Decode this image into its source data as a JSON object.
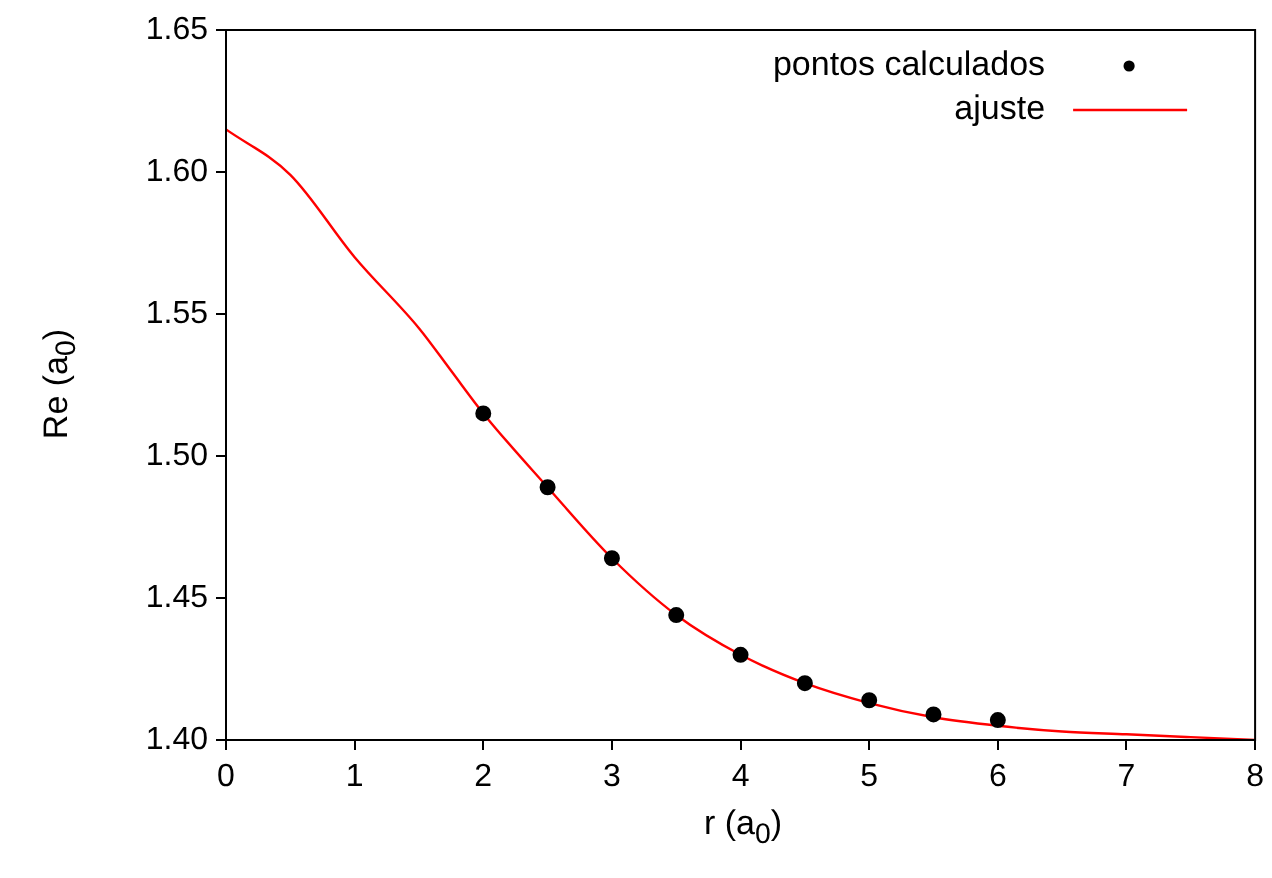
{
  "chart_data": {
    "type": "scatter",
    "xlabel": "r (a$_{0}$)",
    "ylabel": "Re (a$_{0}$)",
    "xlim": [
      0,
      8
    ],
    "xticks": [
      0,
      1,
      2,
      3,
      4,
      5,
      6,
      7,
      8
    ],
    "ylim": [
      1.4,
      1.65
    ],
    "yticks": [
      {
        "value": 1.4,
        "label": "1.40"
      },
      {
        "value": 1.45,
        "label": "1.45"
      },
      {
        "value": 1.5,
        "label": "1.50"
      },
      {
        "value": 1.55,
        "label": "1.55"
      },
      {
        "value": 1.6,
        "label": "1.60"
      },
      {
        "value": 1.65,
        "label": "1.65"
      }
    ],
    "grid": false,
    "legend": "top right",
    "series": [
      {
        "name": "pontos calculados",
        "type": "scatter",
        "marker": "circle",
        "color": "#000000",
        "x": [
          2,
          2.5,
          3,
          3.5,
          4,
          4.5,
          5,
          5.5,
          6
        ],
        "values": [
          1.515,
          1.489,
          1.464,
          1.444,
          1.43,
          1.42,
          1.414,
          1.409,
          1.407
        ]
      },
      {
        "name": "ajuste",
        "type": "line",
        "marker": "none",
        "line_style": "solid",
        "color": "#ff0000",
        "x": [
          0,
          0.5,
          1,
          1.5,
          1.75,
          2,
          2.5,
          3,
          3.5,
          4,
          4.5,
          5,
          5.5,
          6,
          6.5,
          7,
          7.5,
          8
        ],
        "values": [
          1.615,
          1.599,
          1.57,
          1.545,
          1.53,
          1.515,
          1.489,
          1.464,
          1.444,
          1.43,
          1.42,
          1.413,
          1.408,
          1.405,
          1.403,
          1.402,
          1.401,
          1.4
        ]
      }
    ]
  }
}
